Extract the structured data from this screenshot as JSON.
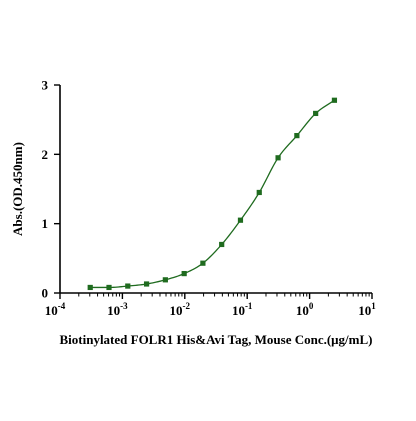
{
  "chart_data": {
    "type": "scatter",
    "title": "",
    "xlabel": "Biotinylated FOLR1 His&Avi Tag, Mouse Conc.(μg/mL)",
    "ylabel": "Abs.(OD.450nm)",
    "x_scale": "log",
    "xlim": [
      0.0001,
      10
    ],
    "ylim": [
      0,
      3
    ],
    "grid": false,
    "legend": "none",
    "x_ticks": [
      {
        "value": 0.0001,
        "base": "10",
        "exp": "-4"
      },
      {
        "value": 0.001,
        "base": "10",
        "exp": "-3"
      },
      {
        "value": 0.01,
        "base": "10",
        "exp": "-2"
      },
      {
        "value": 0.1,
        "base": "10",
        "exp": "-1"
      },
      {
        "value": 1,
        "base": "10",
        "exp": "0"
      },
      {
        "value": 10,
        "base": "10",
        "exp": "1"
      }
    ],
    "y_ticks": [
      {
        "value": 0,
        "label": "0"
      },
      {
        "value": 1,
        "label": "1"
      },
      {
        "value": 2,
        "label": "2"
      },
      {
        "value": 3,
        "label": "3"
      }
    ],
    "series": [
      {
        "color": "#1f6b1f",
        "marker": "square",
        "fit": "sigmoidal curve",
        "points": [
          {
            "x": 0.000305,
            "y": 0.08
          },
          {
            "x": 0.00061,
            "y": 0.08
          },
          {
            "x": 0.00122,
            "y": 0.1
          },
          {
            "x": 0.00244,
            "y": 0.13
          },
          {
            "x": 0.00488,
            "y": 0.19
          },
          {
            "x": 0.00977,
            "y": 0.28
          },
          {
            "x": 0.0195,
            "y": 0.43
          },
          {
            "x": 0.039,
            "y": 0.7
          },
          {
            "x": 0.078,
            "y": 1.05
          },
          {
            "x": 0.156,
            "y": 1.45
          },
          {
            "x": 0.3125,
            "y": 1.95
          },
          {
            "x": 0.625,
            "y": 2.27
          },
          {
            "x": 1.25,
            "y": 2.59
          },
          {
            "x": 2.5,
            "y": 2.78
          }
        ]
      }
    ]
  }
}
